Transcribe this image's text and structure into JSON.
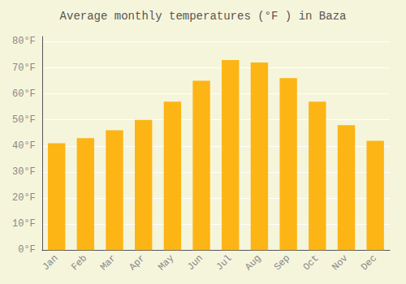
{
  "chart_data": {
    "type": "bar",
    "title": "Average monthly temperatures (°F ) in Baza",
    "categories": [
      "Jan",
      "Feb",
      "Mar",
      "Apr",
      "May",
      "Jun",
      "Jul",
      "Aug",
      "Sep",
      "Oct",
      "Nov",
      "Dec"
    ],
    "values": [
      41,
      43,
      46,
      50,
      57,
      65,
      73,
      72,
      66,
      57,
      48,
      42
    ],
    "color": "#FDB515",
    "ylim": [
      0,
      82
    ],
    "yticks": [
      {
        "value": 0,
        "label": "0°F"
      },
      {
        "value": 10,
        "label": "10°F"
      },
      {
        "value": 20,
        "label": "20°F"
      },
      {
        "value": 30,
        "label": "30°F"
      },
      {
        "value": 40,
        "label": "40°F"
      },
      {
        "value": 50,
        "label": "50°F"
      },
      {
        "value": 60,
        "label": "60°F"
      },
      {
        "value": 70,
        "label": "70°F"
      },
      {
        "value": 80,
        "label": "80°F"
      }
    ],
    "grid": true
  }
}
